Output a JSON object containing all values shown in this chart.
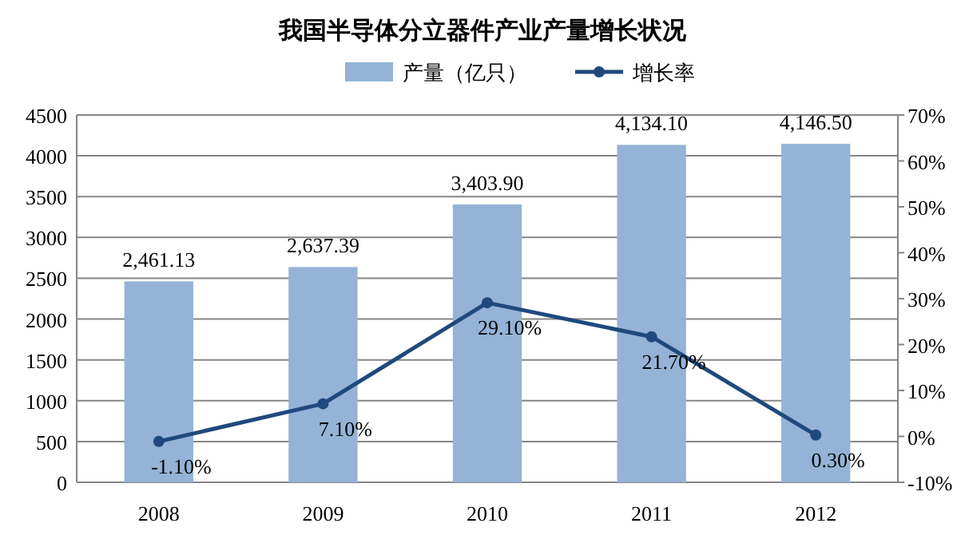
{
  "chart_data": {
    "type": "bar",
    "title": "我国半导体分立器件产业产量增长状况",
    "categories": [
      "2008",
      "2009",
      "2010",
      "2011",
      "2012"
    ],
    "series": [
      {
        "name": "产量（亿只）",
        "color": "#95b3d7",
        "values": [
          2461.13,
          2637.39,
          3403.9,
          4134.1,
          4146.5
        ],
        "value_labels": [
          "2,461.13",
          "2,637.39",
          "3,403.90",
          "4,134.10",
          "4,146.50"
        ]
      },
      {
        "name": "增长率",
        "type": "line",
        "axis": "y2",
        "color": "#1f497d",
        "values": [
          -1.1,
          7.1,
          29.1,
          21.7,
          0.3
        ],
        "value_labels": [
          "-1.10%",
          "7.10%",
          "29.10%",
          "21.70%",
          "0.30%"
        ]
      }
    ],
    "ylim": [
      0,
      4500
    ],
    "yticks": [
      0,
      500,
      1000,
      1500,
      2000,
      2500,
      3000,
      3500,
      4000,
      4500
    ],
    "y2lim": [
      -10,
      70
    ],
    "y2ticks": [
      {
        "value": -10,
        "label": "-10%"
      },
      {
        "value": 0,
        "label": "0%"
      },
      {
        "value": 10,
        "label": "10%"
      },
      {
        "value": 20,
        "label": "20%"
      },
      {
        "value": 30,
        "label": "30%"
      },
      {
        "value": 40,
        "label": "40%"
      },
      {
        "value": 50,
        "label": "50%"
      },
      {
        "value": 60,
        "label": "60%"
      },
      {
        "value": 70,
        "label": "70%"
      }
    ],
    "grid": "y",
    "legend": "top",
    "marker": "circle",
    "line_style": "solid"
  }
}
